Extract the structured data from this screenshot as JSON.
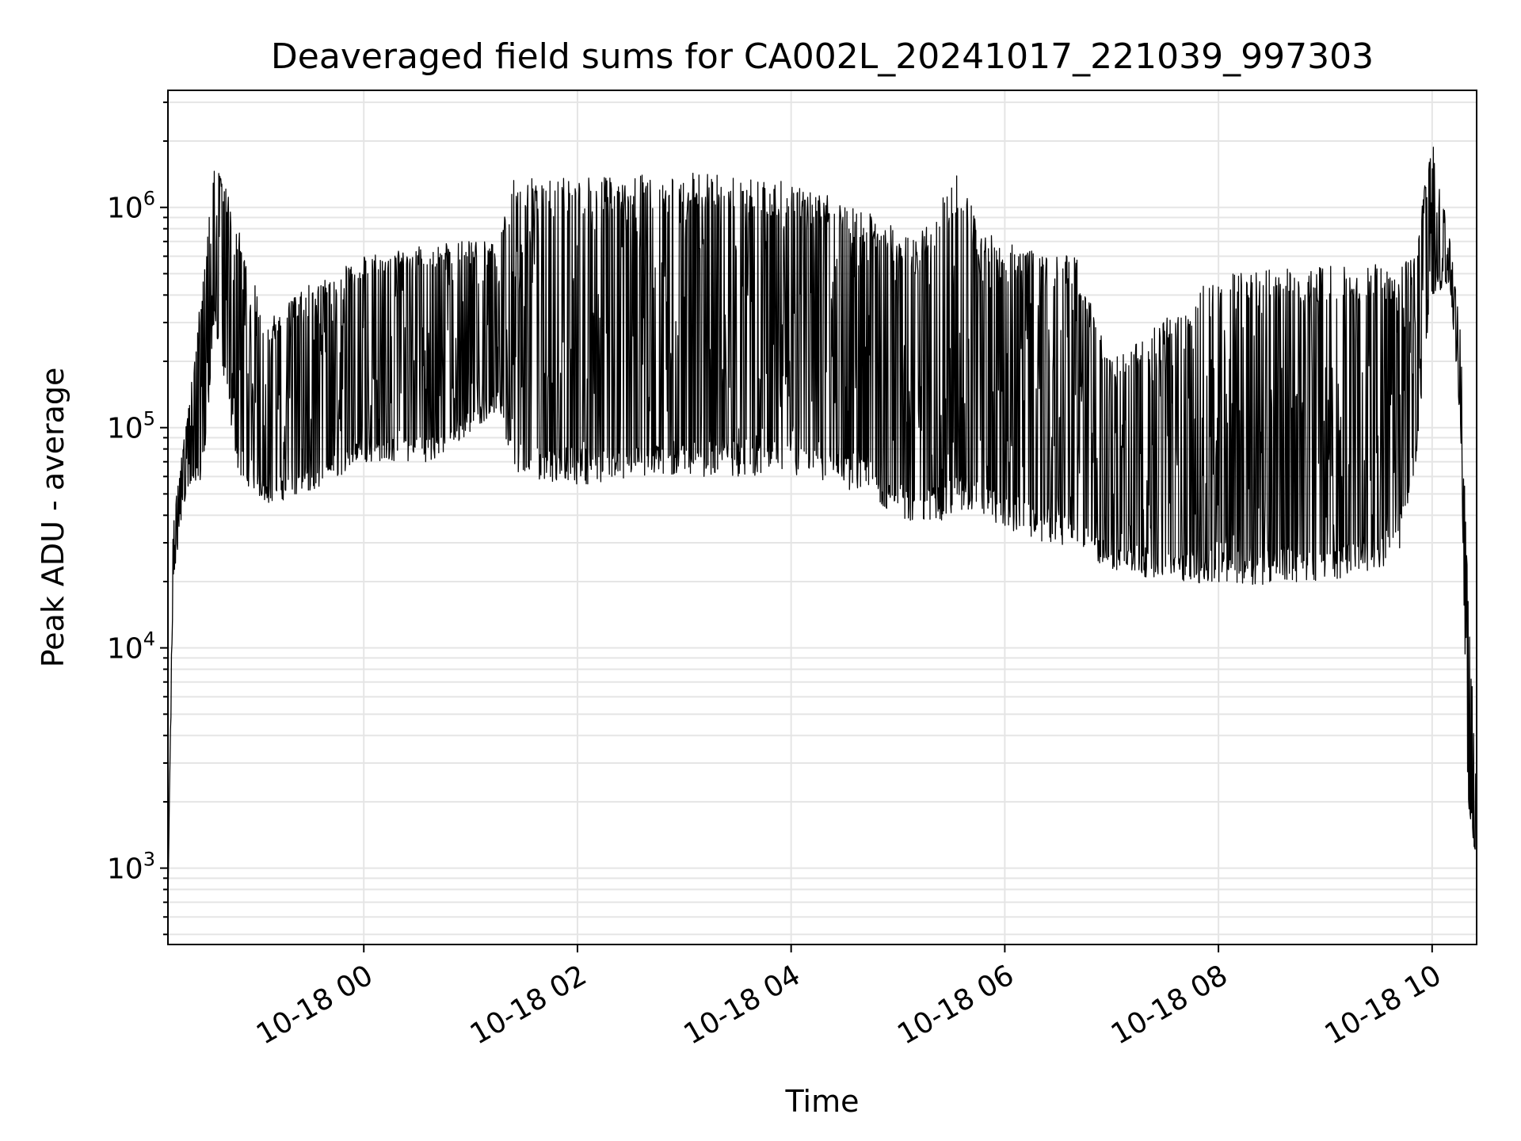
{
  "chart_data": {
    "type": "line",
    "title": "Deaveraged field sums for CA002L_20241017_221039_997303",
    "xlabel": "Time",
    "ylabel": "Peak ADU - average",
    "y_scale": "log",
    "ylim": [
      450,
      3400000
    ],
    "xlim": [
      "2024-10-17 22:10",
      "2024-10-18 10:25"
    ],
    "x_ticks": [
      "10-18 00",
      "10-18 02",
      "10-18 04",
      "10-18 06",
      "10-18 08",
      "10-18 10"
    ],
    "y_ticks": [
      {
        "base": "10",
        "exp": "3"
      },
      {
        "base": "10",
        "exp": "4"
      },
      {
        "base": "10",
        "exp": "5"
      },
      {
        "base": "10",
        "exp": "6"
      }
    ],
    "grid": true,
    "line_color": "#000000",
    "series": [
      {
        "envelope": [
          {
            "t": "2024-10-17 22:10",
            "low": 700,
            "high": 700
          },
          {
            "t": "2024-10-17 22:13",
            "low": 20000,
            "high": 40000
          },
          {
            "t": "2024-10-17 22:20",
            "low": 50000,
            "high": 100000
          },
          {
            "t": "2024-10-17 22:30",
            "low": 60000,
            "high": 500000
          },
          {
            "t": "2024-10-17 22:36",
            "low": 300000,
            "high": 1800000
          },
          {
            "t": "2024-10-17 22:50",
            "low": 60000,
            "high": 800000
          },
          {
            "t": "2024-10-17 23:05",
            "low": 45000,
            "high": 300000
          },
          {
            "t": "2024-10-17 23:30",
            "low": 50000,
            "high": 450000
          },
          {
            "t": "2024-10-18 00:00",
            "low": 70000,
            "high": 600000
          },
          {
            "t": "2024-10-18 00:40",
            "low": 70000,
            "high": 700000
          },
          {
            "t": "2024-10-18 01:15",
            "low": 120000,
            "high": 700000
          },
          {
            "t": "2024-10-18 01:25",
            "low": 60000,
            "high": 1400000
          },
          {
            "t": "2024-10-18 02:00",
            "low": 55000,
            "high": 1350000
          },
          {
            "t": "2024-10-18 03:00",
            "low": 60000,
            "high": 1450000
          },
          {
            "t": "2024-10-18 04:00",
            "low": 60000,
            "high": 1300000
          },
          {
            "t": "2024-10-18 04:40",
            "low": 50000,
            "high": 1000000
          },
          {
            "t": "2024-10-18 05:10",
            "low": 35000,
            "high": 700000
          },
          {
            "t": "2024-10-18 05:35",
            "low": 40000,
            "high": 1500000
          },
          {
            "t": "2024-10-18 05:45",
            "low": 40000,
            "high": 800000
          },
          {
            "t": "2024-10-18 06:10",
            "low": 32000,
            "high": 650000
          },
          {
            "t": "2024-10-18 06:40",
            "low": 28000,
            "high": 600000
          },
          {
            "t": "2024-10-18 07:00",
            "low": 22000,
            "high": 200000
          },
          {
            "t": "2024-10-18 08:00",
            "low": 19000,
            "high": 500000
          },
          {
            "t": "2024-10-18 09:00",
            "low": 20000,
            "high": 550000
          },
          {
            "t": "2024-10-18 09:40",
            "low": 24000,
            "high": 550000
          },
          {
            "t": "2024-10-18 09:50",
            "low": 60000,
            "high": 600000
          },
          {
            "t": "2024-10-18 10:00",
            "low": 400000,
            "high": 2200000
          },
          {
            "t": "2024-10-18 10:10",
            "low": 450000,
            "high": 700000
          },
          {
            "t": "2024-10-18 10:16",
            "low": 100000,
            "high": 300000
          },
          {
            "t": "2024-10-18 10:20",
            "low": 2000,
            "high": 20000
          },
          {
            "t": "2024-10-18 10:25",
            "low": 1000,
            "high": 2200
          }
        ]
      }
    ]
  }
}
